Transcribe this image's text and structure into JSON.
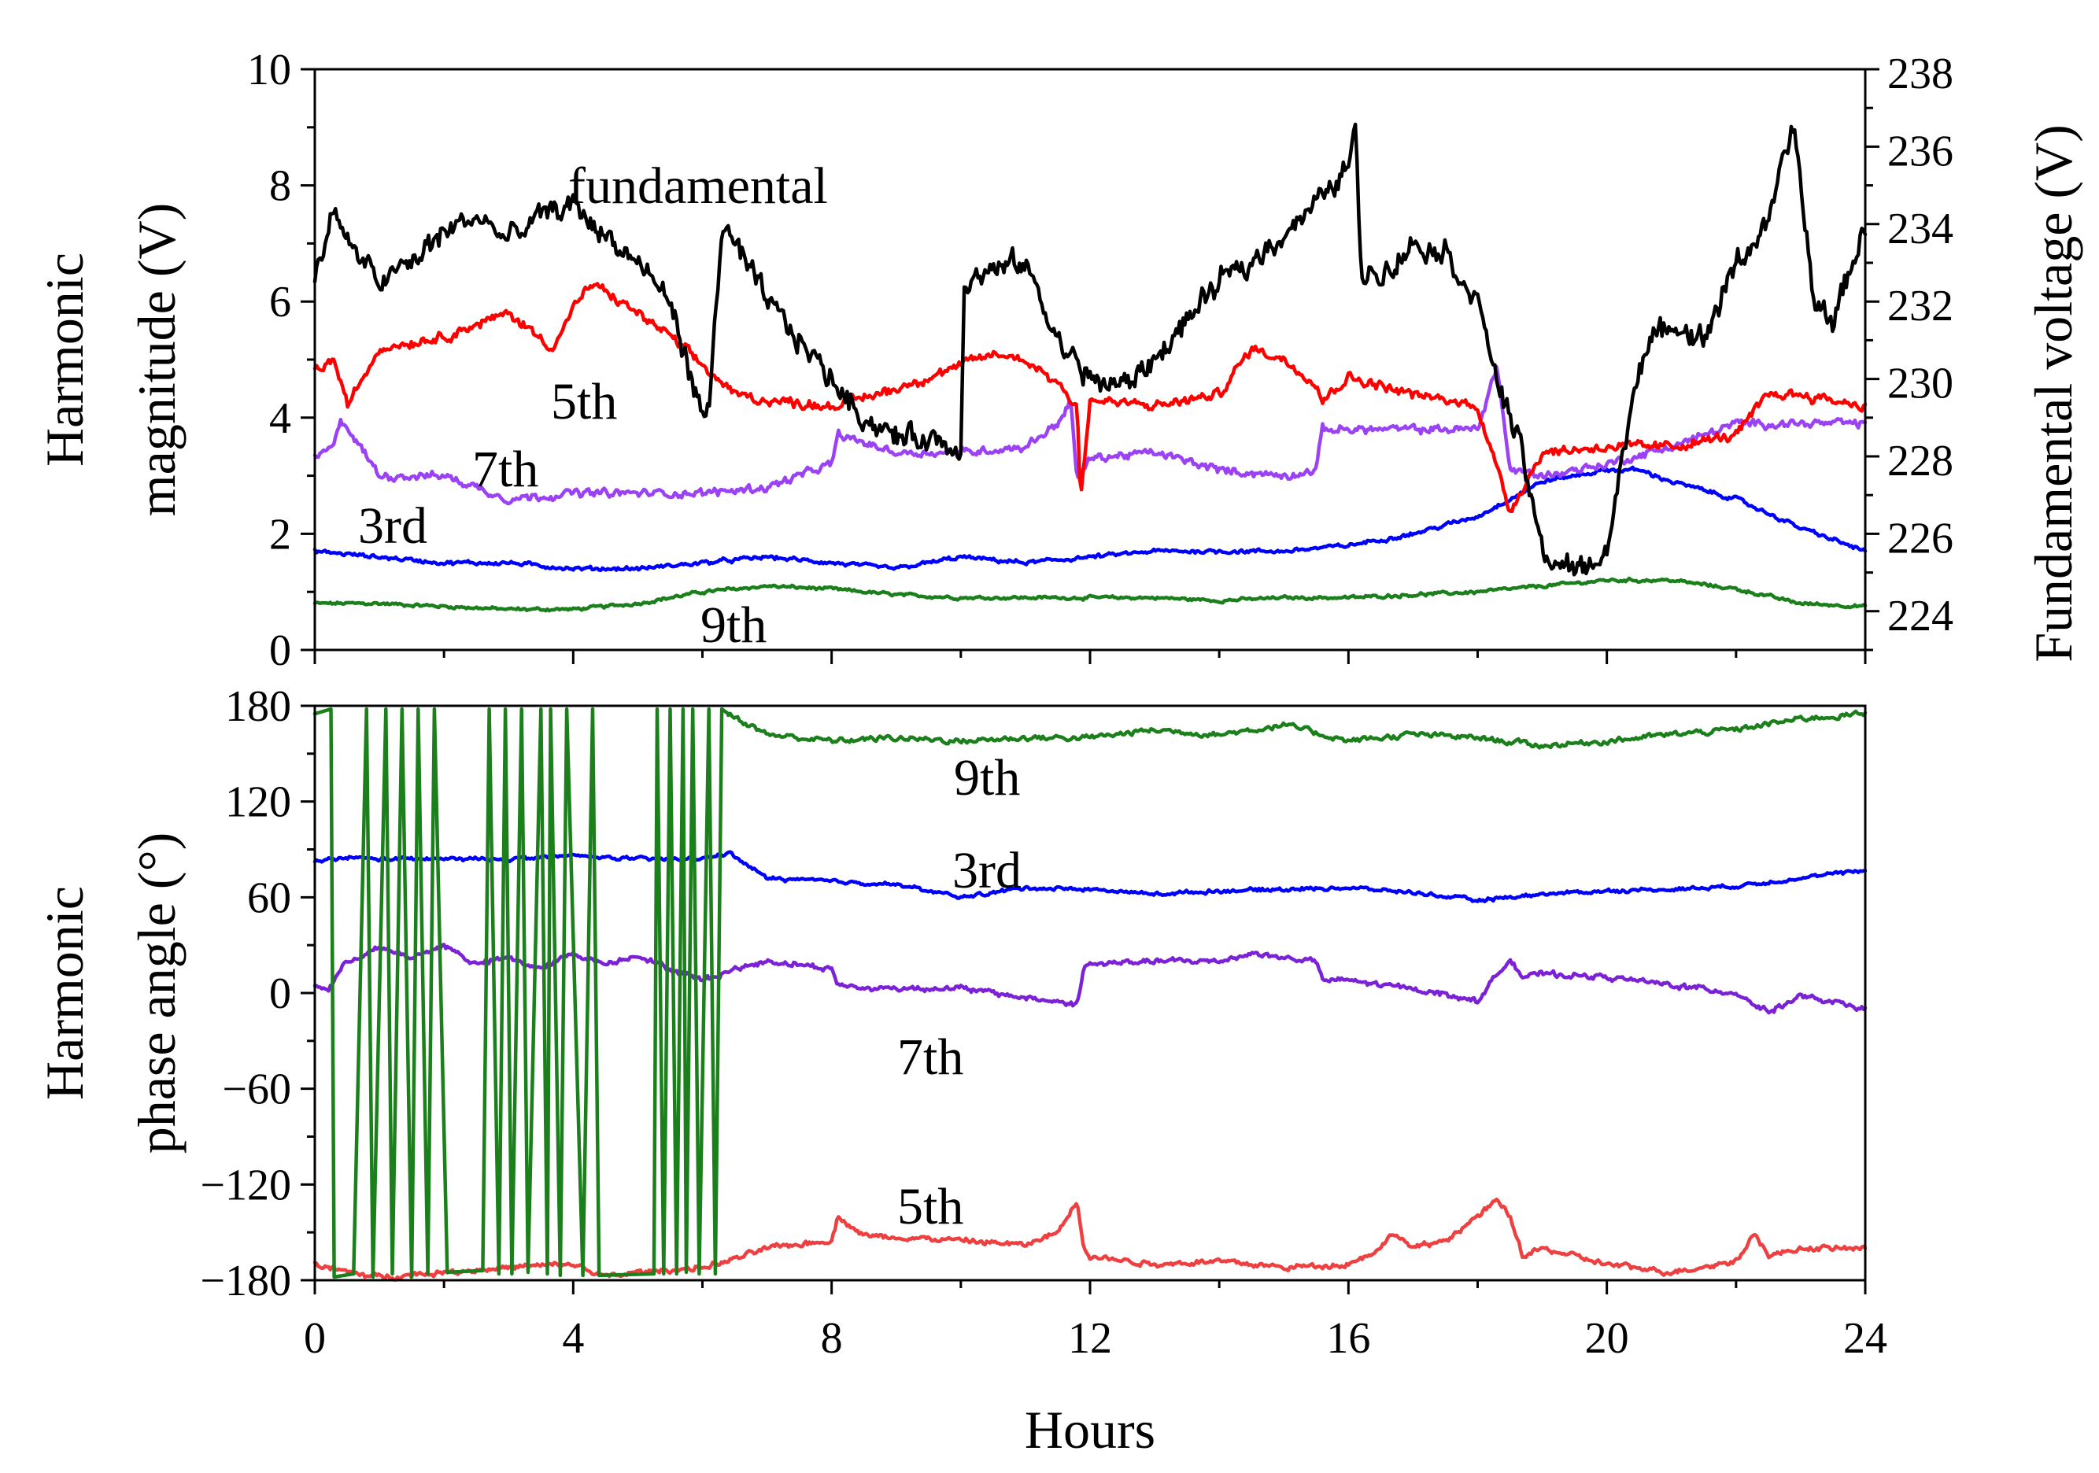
{
  "chart_data": [
    {
      "type": "line",
      "panel": "top",
      "ylabel_lines": [
        "Harmonic",
        "magnitude (V)"
      ],
      "y2label": "Fundamental voltage (V)",
      "ylim": [
        0,
        10
      ],
      "yticks": [
        "0",
        "2",
        "4",
        "6",
        "8",
        "10"
      ],
      "y2lim": [
        223,
        238
      ],
      "y2ticks": [
        "224",
        "226",
        "228",
        "230",
        "232",
        "234",
        "236",
        "238"
      ],
      "xlim": [
        0,
        24
      ],
      "series": [
        {
          "name": "fundamental",
          "axis": "right",
          "color": "#000000",
          "label": "fundamental",
          "x": [
            0,
            0.3,
            0.5,
            1,
            1.5,
            2,
            2.5,
            3,
            3.5,
            4,
            4.5,
            5,
            5.5,
            6,
            6.1,
            6.3,
            7,
            7.5,
            8,
            8.5,
            9,
            9.5,
            10,
            10.05,
            10.5,
            11,
            11.5,
            12,
            12.5,
            13,
            13.5,
            14,
            14.5,
            15,
            15.5,
            16,
            16.1,
            16.2,
            16.5,
            17,
            17.5,
            18,
            18.3,
            18.7,
            19,
            19.5,
            20,
            20.5,
            21,
            21.5,
            22,
            22.5,
            22.8,
            22.9,
            23.2,
            23.5,
            24
          ],
          "y": [
            232.5,
            234.5,
            233.5,
            232.5,
            233,
            233.8,
            234.2,
            233.6,
            234.2,
            234.5,
            233.7,
            233,
            232,
            229,
            229.2,
            234,
            232,
            231,
            230,
            229,
            228.5,
            228.5,
            228.2,
            232.5,
            232.8,
            233,
            231,
            230,
            229.8,
            230.5,
            231.5,
            232.5,
            233,
            233.8,
            234.5,
            235.5,
            236.5,
            232.8,
            232.7,
            233.5,
            233.3,
            232,
            230,
            228,
            225.5,
            225,
            225.5,
            230.5,
            231.5,
            231,
            233,
            234,
            236,
            236.5,
            232,
            231.5,
            234
          ]
        },
        {
          "name": "5th",
          "axis": "left",
          "color": "#ff0000",
          "label": "5th",
          "x": [
            0,
            0.3,
            0.5,
            1,
            2,
            3,
            3.7,
            4,
            4.3,
            5,
            5.5,
            6,
            6.5,
            7,
            8,
            9,
            10,
            10.5,
            11,
            11.5,
            11.8,
            11.85,
            12,
            13,
            14,
            14.5,
            15,
            15.5,
            15.6,
            16,
            17,
            18,
            18.5,
            19,
            20,
            21,
            22,
            22.5,
            23,
            24
          ],
          "y": [
            4.8,
            5,
            4.2,
            5.2,
            5.4,
            5.8,
            5.2,
            5.9,
            6.3,
            5.8,
            5.4,
            4.9,
            4.4,
            4.3,
            4.2,
            4.5,
            4.9,
            5.1,
            5,
            4.6,
            4.2,
            2.6,
            4.3,
            4.2,
            4.4,
            5.2,
            5,
            4.6,
            4.3,
            4.7,
            4.4,
            4.2,
            2.4,
            3.4,
            3.5,
            3.5,
            3.7,
            4.4,
            4.4,
            4.2
          ]
        },
        {
          "name": "7th",
          "axis": "left",
          "color": "#9b42f5",
          "label": "7th",
          "x": [
            0,
            0.3,
            0.4,
            1,
            2,
            3,
            4,
            5,
            6,
            7,
            8,
            8.1,
            9,
            10,
            11,
            11.5,
            11.7,
            11.8,
            12,
            13,
            14,
            15,
            15.5,
            15.6,
            16,
            17,
            18,
            18.3,
            18.5,
            19,
            20,
            21,
            22,
            23,
            24
          ],
          "y": [
            3.3,
            3.5,
            4,
            3,
            3,
            2.6,
            2.7,
            2.7,
            2.7,
            2.8,
            3.2,
            3.7,
            3.4,
            3.4,
            3.5,
            3.9,
            4.3,
            2.9,
            3.3,
            3.4,
            3.1,
            3,
            3.1,
            3.8,
            3.8,
            3.8,
            3.8,
            4.9,
            3.1,
            3,
            3.2,
            3.5,
            3.9,
            3.9,
            3.9
          ]
        },
        {
          "name": "3rd",
          "axis": "left",
          "color": "#0000ff",
          "label": "3rd",
          "x": [
            0,
            1,
            2,
            3,
            4,
            5,
            6,
            7,
            8,
            9,
            10,
            11,
            12,
            13,
            14,
            15,
            16,
            17,
            18,
            18.5,
            19,
            20,
            20.5,
            21,
            22,
            23,
            24
          ],
          "y": [
            1.7,
            1.6,
            1.5,
            1.5,
            1.4,
            1.4,
            1.5,
            1.6,
            1.5,
            1.4,
            1.6,
            1.5,
            1.6,
            1.7,
            1.7,
            1.7,
            1.8,
            2,
            2.3,
            2.6,
            2.9,
            3.1,
            3.1,
            2.9,
            2.6,
            2.1,
            1.7
          ]
        },
        {
          "name": "9th",
          "axis": "left",
          "color": "#1b7f1b",
          "label": "9th",
          "x": [
            0,
            1,
            2,
            3,
            4,
            5,
            6,
            7,
            8,
            9,
            10,
            11,
            12,
            13,
            14,
            15,
            16,
            17,
            18,
            19,
            20,
            21,
            22,
            23,
            24
          ],
          "y": [
            0.8,
            0.8,
            0.75,
            0.7,
            0.7,
            0.8,
            1,
            1.1,
            1.05,
            0.95,
            0.9,
            0.9,
            0.9,
            0.9,
            0.85,
            0.9,
            0.9,
            0.95,
            1,
            1.1,
            1.2,
            1.2,
            1.05,
            0.8,
            0.75
          ]
        }
      ]
    },
    {
      "type": "line",
      "panel": "bottom",
      "ylabel_lines": [
        "Harmonic",
        "phase angle (°)"
      ],
      "xlabel": "Hours",
      "ylim": [
        -180,
        180
      ],
      "yticks": [
        "−180",
        "−120",
        "−60",
        "0",
        "60",
        "120",
        "180"
      ],
      "xlim": [
        0,
        24
      ],
      "xticks": [
        "0",
        "4",
        "8",
        "12",
        "16",
        "20",
        "24"
      ],
      "series": [
        {
          "name": "9th",
          "color": "#1b7f1b",
          "label": "9th",
          "x": [
            0,
            0.25,
            0.3,
            0.6,
            0.8,
            0.9,
            1.1,
            1.2,
            1.35,
            1.5,
            1.6,
            1.75,
            1.85,
            2.05,
            2.6,
            2.7,
            2.85,
            2.95,
            3.05,
            3.2,
            3.3,
            3.5,
            3.6,
            3.65,
            3.8,
            3.9,
            4.15,
            4.3,
            4.4,
            5.25,
            5.3,
            5.4,
            5.5,
            5.6,
            5.7,
            5.75,
            5.85,
            5.95,
            6.1,
            6.2,
            6.3,
            6.4,
            7,
            8,
            9,
            10,
            11,
            12,
            13,
            14,
            15,
            16,
            17,
            18,
            19,
            20,
            21,
            22,
            23,
            24
          ],
          "y": [
            175,
            178,
            -178,
            -176,
            178,
            -178,
            178,
            -176,
            178,
            -178,
            178,
            -176,
            178,
            -175,
            -174,
            178,
            -176,
            178,
            -176,
            178,
            -175,
            178,
            -176,
            178,
            -177,
            178,
            -177,
            178,
            -177,
            -176,
            178,
            -176,
            178,
            -176,
            178,
            -175,
            178,
            -176,
            178,
            -176,
            178,
            175,
            162,
            158,
            160,
            158,
            160,
            160,
            165,
            162,
            168,
            158,
            162,
            160,
            155,
            158,
            162,
            165,
            172,
            175
          ]
        },
        {
          "name": "3rd",
          "color": "#0000ff",
          "label": "3rd",
          "x": [
            0,
            0.5,
            1,
            2,
            3,
            4,
            5,
            6,
            6.4,
            7,
            8,
            9,
            10,
            11,
            12,
            13,
            14,
            15,
            16,
            17,
            18,
            19,
            20,
            21,
            22,
            23,
            24
          ],
          "y": [
            82,
            85,
            84,
            84,
            84,
            86,
            84,
            84,
            88,
            72,
            70,
            68,
            60,
            66,
            65,
            62,
            64,
            65,
            66,
            63,
            58,
            62,
            64,
            65,
            67,
            72,
            77
          ]
        },
        {
          "name": "7th",
          "color": "#7b22d6",
          "label": "7th",
          "x": [
            0,
            0.2,
            0.5,
            1,
            1.5,
            2,
            2.5,
            3,
            3.5,
            4,
            4.5,
            5,
            5.5,
            6,
            6.5,
            7,
            7.5,
            8,
            8.1,
            8.5,
            9,
            10,
            11,
            11.8,
            11.9,
            12,
            13,
            14,
            14.5,
            15,
            15.5,
            15.6,
            16,
            16.5,
            17,
            18,
            18.5,
            18.7,
            19,
            20,
            21,
            22,
            22.5,
            23,
            24
          ],
          "y": [
            5,
            2,
            20,
            28,
            22,
            30,
            18,
            22,
            15,
            25,
            18,
            24,
            15,
            8,
            15,
            20,
            18,
            15,
            5,
            3,
            3,
            3,
            -3,
            -7,
            15,
            18,
            20,
            20,
            25,
            22,
            20,
            8,
            8,
            5,
            3,
            -5,
            22,
            10,
            12,
            10,
            5,
            0,
            -12,
            -2,
            -10
          ]
        },
        {
          "name": "5th",
          "color": "#ee4040",
          "label": "5th",
          "x": [
            0,
            0.5,
            1,
            2,
            3,
            4,
            4.5,
            5,
            6,
            6.4,
            7,
            8,
            8.1,
            8.5,
            10,
            11,
            11.5,
            11.8,
            11.9,
            12,
            13,
            14,
            15,
            16,
            16.5,
            16.7,
            17,
            17.5,
            18,
            18.3,
            18.5,
            18.7,
            19,
            20,
            21,
            22,
            22.3,
            22.5,
            23,
            24
          ],
          "y": [
            -170,
            -175,
            -178,
            -175,
            -172,
            -170,
            -178,
            -175,
            -172,
            -168,
            -160,
            -155,
            -140,
            -152,
            -155,
            -158,
            -150,
            -130,
            -158,
            -165,
            -170,
            -168,
            -172,
            -170,
            -160,
            -150,
            -160,
            -155,
            -140,
            -130,
            -140,
            -165,
            -160,
            -170,
            -175,
            -168,
            -150,
            -165,
            -160,
            -160
          ]
        }
      ]
    }
  ]
}
